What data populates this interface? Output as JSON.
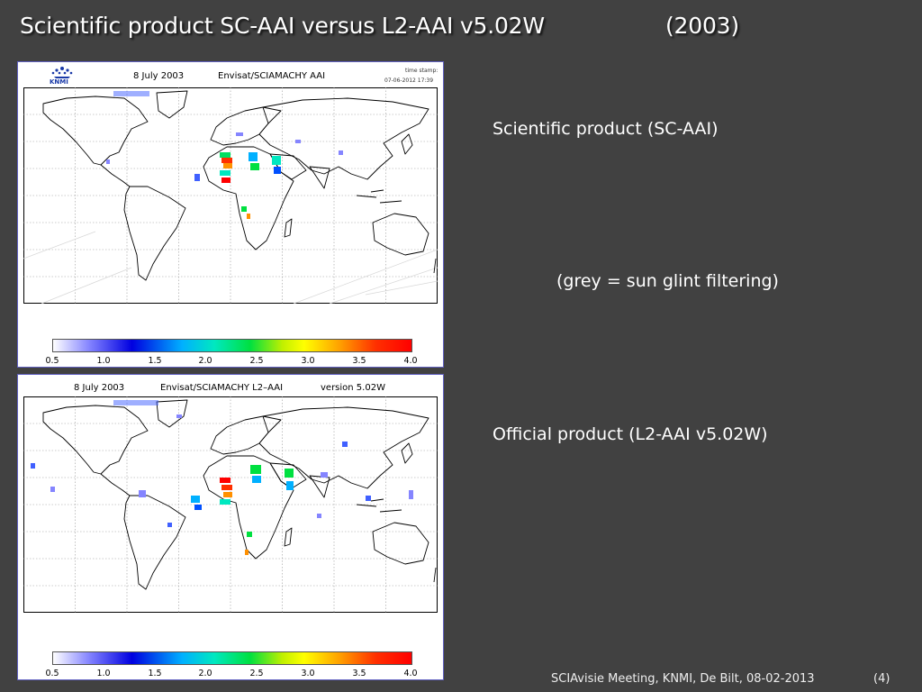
{
  "title": {
    "main": "Scientific product SC-AAI versus L2-AAI v5.02W",
    "year": "(2003)"
  },
  "panels": [
    {
      "date": "8 July 2003",
      "source": "Envisat/SCIAMACHY AAI",
      "logo_text": "KNMI",
      "stamp_label": "time stamp:",
      "stamp_value": "07-06-2012 17:39"
    },
    {
      "date": "8 July 2003",
      "source": "Envisat/SCIAMACHY L2–AAI",
      "version": "version 5.02W"
    }
  ],
  "colorbar": {
    "ticks": [
      "0.5",
      "1.0",
      "1.5",
      "2.0",
      "2.5",
      "3.0",
      "3.5",
      "4.0"
    ]
  },
  "labels": {
    "sc": "Scientific product (SC-AAI)",
    "grey": "(grey = sun glint filtering)",
    "l2": "Official product (L2-AAI v5.02W)"
  },
  "footer": {
    "text": "SCIAvisie Meeting, KNMI, De Bilt, 08-02-2013",
    "page": "(4)"
  }
}
